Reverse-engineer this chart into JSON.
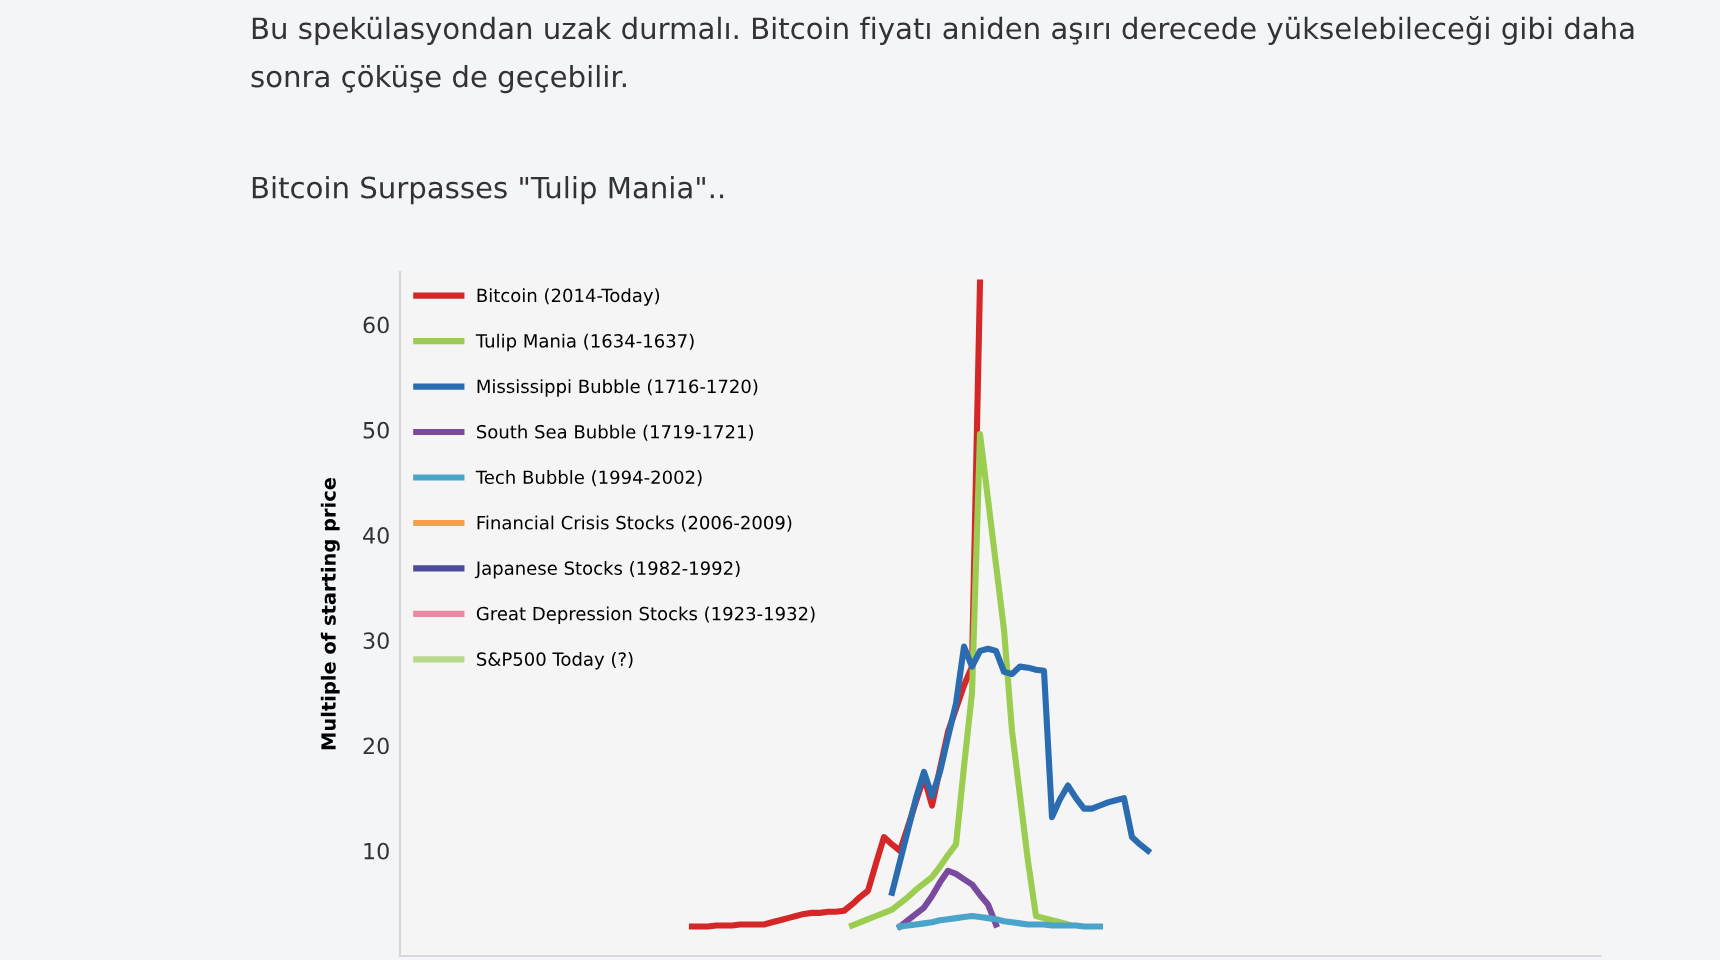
{
  "chart_data": {
    "type": "line",
    "subtitle": "Bu spekülasyondan uzak durmalı. Bitcoin fiyatı aniden aşırı derecede yükselebileceği gibi daha sonra çöküşe de geçebilir.",
    "title": "Bitcoin Surpasses \"Tulip Mania\"..",
    "ylabel": "Multiple of starting price",
    "ylim": [
      0,
      65
    ],
    "yticks": [
      10,
      20,
      30,
      40,
      50,
      60
    ],
    "tick_labels": "y",
    "legend": "top left",
    "line_style": "solid",
    "categories": [
      null,
      null,
      null,
      null,
      null,
      null,
      null,
      null,
      null,
      null,
      null,
      null,
      null,
      null,
      null,
      null,
      null,
      null,
      null,
      null,
      null,
      null,
      null,
      null,
      null,
      null,
      null,
      null,
      null,
      null,
      null,
      null,
      null,
      null,
      null,
      null,
      null,
      null,
      null,
      null,
      null,
      null,
      null,
      null,
      null,
      null,
      null,
      null,
      null,
      null,
      null,
      null,
      null,
      null,
      null,
      null,
      null,
      null,
      null,
      null,
      null,
      null,
      null,
      null,
      null,
      null,
      null,
      null,
      null,
      null,
      null,
      null,
      null,
      null,
      null,
      null,
      null,
      null,
      null,
      null,
      null,
      null,
      null,
      null,
      null,
      null,
      null,
      null,
      null,
      null,
      null,
      null,
      null,
      null,
      null,
      null,
      null,
      null,
      null,
      null,
      null,
      null,
      null,
      null,
      null,
      null,
      null,
      null,
      null,
      null,
      null,
      null,
      null,
      null,
      null,
      null,
      null,
      null,
      null,
      null,
      null,
      null,
      null,
      null,
      null,
      null,
      null,
      null,
      null,
      null,
      null,
      null,
      null,
      null,
      null,
      null,
      null,
      null,
      null,
      null,
      null,
      null,
      null,
      null,
      null,
      null,
      null,
      null,
      null,
      null
    ],
    "series": [
      {
        "name": "Bitcoin (2014-Today)",
        "color": "#d62728",
        "values": [
          null,
          null,
          null,
          null,
          null,
          null,
          null,
          null,
          null,
          null,
          null,
          null,
          null,
          null,
          null,
          null,
          null,
          null,
          null,
          null,
          null,
          null,
          null,
          null,
          null,
          null,
          null,
          null,
          null,
          null,
          null,
          null,
          null,
          null,
          null,
          null,
          2.8,
          2.8,
          2.8,
          2.9,
          2.9,
          2.9,
          3,
          3,
          3,
          3,
          3.2,
          3.4,
          3.6,
          3.8,
          4,
          4.1,
          4.1,
          4.2,
          4.2,
          4.3,
          4.9,
          5.6,
          6.2,
          8.8,
          11.3,
          10.6,
          10,
          12.3,
          14.7,
          17,
          14.3,
          17.8,
          21.3,
          23.5,
          25.7,
          27.5,
          64,
          null,
          null,
          null,
          null,
          null,
          null,
          null,
          null,
          null,
          null,
          null,
          null,
          null,
          null,
          null,
          null,
          null,
          null,
          null,
          null,
          null,
          null,
          null,
          null,
          null,
          null,
          null,
          null,
          null,
          null,
          null,
          null,
          null,
          null,
          null,
          null,
          null,
          null,
          null,
          null,
          null,
          null,
          null,
          null,
          null,
          null,
          null,
          null,
          null,
          null,
          null,
          null,
          null,
          null,
          null,
          null,
          null,
          null,
          null,
          null,
          null,
          null,
          null,
          null,
          null,
          null,
          null,
          null,
          null,
          null,
          null,
          null,
          null,
          null,
          null,
          null,
          null
        ]
      },
      {
        "name": "Tulip Mania (1634-1637)",
        "color": "#9acd50",
        "values": [
          null,
          null,
          null,
          null,
          null,
          null,
          null,
          null,
          null,
          null,
          null,
          null,
          null,
          null,
          null,
          null,
          null,
          null,
          null,
          null,
          null,
          null,
          null,
          null,
          null,
          null,
          null,
          null,
          null,
          null,
          null,
          null,
          null,
          null,
          null,
          null,
          null,
          null,
          null,
          null,
          null,
          null,
          null,
          null,
          null,
          null,
          null,
          null,
          null,
          null,
          null,
          null,
          null,
          null,
          null,
          null,
          2.9,
          3.2,
          3.5,
          3.8,
          4.1,
          4.4,
          5,
          5.6,
          6.3,
          6.9,
          7.5,
          8.5,
          9.6,
          10.6,
          18,
          25,
          49.6,
          43.4,
          37.2,
          31,
          21.4,
          15.2,
          9,
          3.8,
          3.6,
          3.4,
          3.2,
          3,
          null,
          null,
          null,
          null,
          null,
          null,
          null,
          null,
          null,
          null,
          null,
          null,
          null,
          null,
          null,
          null,
          null,
          null,
          null,
          null,
          null,
          null,
          null,
          null,
          null,
          null,
          null,
          null,
          null,
          null,
          null,
          null,
          null,
          null,
          null,
          null,
          null,
          null,
          null,
          null,
          null,
          null,
          null,
          null,
          null,
          null,
          null,
          null,
          null,
          null,
          null,
          null,
          null,
          null,
          null,
          null,
          null,
          null,
          null,
          null,
          null,
          null,
          null,
          null,
          null,
          null
        ]
      },
      {
        "name": "Mississippi Bubble (1716-1720)",
        "color": "#2b6cb0",
        "values": [
          null,
          null,
          null,
          null,
          null,
          null,
          null,
          null,
          null,
          null,
          null,
          null,
          null,
          null,
          null,
          null,
          null,
          null,
          null,
          null,
          null,
          null,
          null,
          null,
          null,
          null,
          null,
          null,
          null,
          null,
          null,
          null,
          null,
          null,
          null,
          null,
          null,
          null,
          null,
          null,
          null,
          null,
          null,
          null,
          null,
          null,
          null,
          null,
          null,
          null,
          null,
          null,
          null,
          null,
          null,
          null,
          null,
          null,
          null,
          null,
          null,
          6,
          9,
          12,
          15,
          17.5,
          15.2,
          17.5,
          20.8,
          24,
          29.4,
          27.5,
          29,
          29.2,
          29,
          27,
          26.8,
          27.5,
          27.4,
          27.2,
          27.1,
          13.2,
          14.9,
          16.2,
          15,
          14,
          14,
          14.3,
          14.6,
          14.8,
          15,
          11.3,
          10.6,
          10,
          null,
          null,
          null,
          null,
          null,
          null,
          null,
          null,
          null,
          null,
          null,
          null,
          null,
          null,
          null,
          null,
          null,
          null,
          null,
          null,
          null,
          null,
          null,
          null,
          null,
          null,
          null,
          null,
          null,
          null,
          null,
          null,
          null,
          null,
          null,
          null,
          null,
          null,
          null,
          null,
          null,
          null,
          null,
          null,
          null,
          null,
          null,
          null,
          null,
          null,
          null,
          null,
          null,
          null,
          null,
          null
        ]
      },
      {
        "name": "South Sea Bubble (1719-1721)",
        "color": "#7a4a9e",
        "values": [
          null,
          null,
          null,
          null,
          null,
          null,
          null,
          null,
          null,
          null,
          null,
          null,
          null,
          null,
          null,
          null,
          null,
          null,
          null,
          null,
          null,
          null,
          null,
          null,
          null,
          null,
          null,
          null,
          null,
          null,
          null,
          null,
          null,
          null,
          null,
          null,
          null,
          null,
          null,
          null,
          null,
          null,
          null,
          null,
          null,
          null,
          null,
          null,
          null,
          null,
          null,
          null,
          null,
          null,
          null,
          null,
          null,
          null,
          null,
          null,
          null,
          null,
          2.8,
          3.4,
          4,
          4.6,
          5.7,
          7,
          8.1,
          7.8,
          7.3,
          6.8,
          5.8,
          4.9,
          3,
          null,
          null,
          null,
          null,
          null,
          null,
          null,
          null,
          null,
          null,
          null,
          null,
          null,
          null,
          null,
          null,
          null,
          null,
          null,
          null,
          null,
          null,
          null,
          null,
          null,
          null,
          null,
          null,
          null,
          null,
          null,
          null,
          null,
          null,
          null,
          null,
          null,
          null,
          null,
          null,
          null,
          null,
          null,
          null,
          null,
          null,
          null,
          null,
          null,
          null,
          null,
          null,
          null,
          null,
          null,
          null,
          null,
          null,
          null,
          null,
          null,
          null,
          null,
          null,
          null,
          null,
          null,
          null,
          null,
          null,
          null,
          null,
          null,
          null,
          null
        ]
      },
      {
        "name": "Tech Bubble (1994-2002)",
        "color": "#4aa3c8",
        "values": [
          null,
          null,
          null,
          null,
          null,
          null,
          null,
          null,
          null,
          null,
          null,
          null,
          null,
          null,
          null,
          null,
          null,
          null,
          null,
          null,
          null,
          null,
          null,
          null,
          null,
          null,
          null,
          null,
          null,
          null,
          null,
          null,
          null,
          null,
          null,
          null,
          null,
          null,
          null,
          null,
          null,
          null,
          null,
          null,
          null,
          null,
          null,
          null,
          null,
          null,
          null,
          null,
          null,
          null,
          null,
          null,
          null,
          null,
          null,
          null,
          null,
          null,
          2.8,
          2.9,
          3,
          3.1,
          3.2,
          3.4,
          3.5,
          3.6,
          3.7,
          3.8,
          3.7,
          3.6,
          3.5,
          3.3,
          3.2,
          3.1,
          3,
          3,
          3,
          2.9,
          2.9,
          2.9,
          2.9,
          2.8,
          2.8,
          2.8,
          null,
          null,
          null,
          null,
          null,
          null,
          null,
          null,
          null,
          null,
          null,
          null,
          null,
          null,
          null,
          null,
          null,
          null,
          null,
          null,
          null,
          null,
          null,
          null,
          null,
          null,
          null,
          null,
          null,
          null,
          null,
          null,
          null,
          null,
          null,
          null,
          null,
          null,
          null,
          null,
          null,
          null,
          null,
          null,
          null,
          null,
          null,
          null,
          null,
          null,
          null,
          null,
          null,
          null,
          null,
          null,
          null,
          null,
          null,
          null,
          null,
          null
        ]
      },
      {
        "name": "Financial Crisis Stocks (2006-2009)",
        "color": "#f0a050",
        "values": [
          null,
          null,
          null,
          null,
          null,
          null,
          null,
          null,
          null,
          null,
          null,
          null,
          null,
          null,
          null,
          null,
          null,
          null,
          null,
          null,
          null,
          null,
          null,
          null,
          null,
          null,
          null,
          null,
          null,
          null,
          null,
          null,
          null,
          null,
          null,
          null,
          null,
          null,
          null,
          null,
          null,
          null,
          null,
          null,
          null,
          null,
          null,
          null,
          null,
          null,
          null,
          null,
          null,
          null,
          null,
          null,
          null,
          null,
          null,
          null,
          null,
          null,
          null,
          null,
          null,
          null,
          null,
          null,
          null,
          null,
          null,
          null,
          null,
          null,
          null,
          null,
          null,
          null,
          null,
          null,
          null,
          null,
          null,
          null,
          null,
          null,
          null,
          null,
          null,
          null,
          null,
          null,
          null,
          null,
          null,
          null,
          null,
          null,
          null,
          null,
          null,
          null,
          null,
          null,
          null,
          null,
          null,
          null,
          null,
          null,
          null,
          null,
          null,
          null,
          null,
          null,
          null,
          null,
          null,
          null,
          null,
          null,
          null,
          null,
          null,
          null,
          null,
          null,
          null,
          null,
          null,
          null,
          null,
          null,
          null,
          null,
          null,
          null,
          null,
          null,
          null,
          null,
          null,
          null,
          null,
          null,
          null,
          null,
          null,
          null
        ]
      },
      {
        "name": "Japanese Stocks (1982-1992)",
        "color": "#4a4a9e",
        "values": [
          null,
          null,
          null,
          null,
          null,
          null,
          null,
          null,
          null,
          null,
          null,
          null,
          null,
          null,
          null,
          null,
          null,
          null,
          null,
          null,
          null,
          null,
          null,
          null,
          null,
          null,
          null,
          null,
          null,
          null,
          null,
          null,
          null,
          null,
          null,
          null,
          null,
          null,
          null,
          null,
          null,
          null,
          null,
          null,
          null,
          null,
          null,
          null,
          null,
          null,
          null,
          null,
          null,
          null,
          null,
          null,
          null,
          null,
          null,
          null,
          null,
          null,
          null,
          null,
          null,
          null,
          null,
          null,
          null,
          null,
          null,
          null,
          null,
          null,
          null,
          null,
          null,
          null,
          null,
          null,
          null,
          null,
          null,
          null,
          null,
          null,
          null,
          null,
          null,
          null,
          null,
          null,
          null,
          null,
          null,
          null,
          null,
          null,
          null,
          null,
          null,
          null,
          null,
          null,
          null,
          null,
          null,
          null,
          null,
          null,
          null,
          null,
          null,
          null,
          null,
          null,
          null,
          null,
          null,
          null,
          null,
          null,
          null,
          null,
          null,
          null,
          null,
          null,
          null,
          null,
          null,
          null,
          null,
          null,
          null,
          null,
          null,
          null,
          null,
          null,
          null,
          null,
          null,
          null,
          null,
          null,
          null,
          null,
          null,
          null
        ]
      },
      {
        "name": "Great Depression Stocks (1923-1932)",
        "color": "#e88aa0",
        "values": [
          null,
          null,
          null,
          null,
          null,
          null,
          null,
          null,
          null,
          null,
          null,
          null,
          null,
          null,
          null,
          null,
          null,
          null,
          null,
          null,
          null,
          null,
          null,
          null,
          null,
          null,
          null,
          null,
          null,
          null,
          null,
          null,
          null,
          null,
          null,
          null,
          null,
          null,
          null,
          null,
          null,
          null,
          null,
          null,
          null,
          null,
          null,
          null,
          null,
          null,
          null,
          null,
          null,
          null,
          null,
          null,
          null,
          null,
          null,
          null,
          null,
          null,
          null,
          null,
          null,
          null,
          null,
          null,
          null,
          null,
          null,
          null,
          null,
          null,
          null,
          null,
          null,
          null,
          null,
          null,
          null,
          null,
          null,
          null,
          null,
          null,
          null,
          null,
          null,
          null,
          null,
          null,
          null,
          null,
          null,
          null,
          null,
          null,
          null,
          null,
          null,
          null,
          null,
          null,
          null,
          null,
          null,
          null,
          null,
          null,
          null,
          null,
          null,
          null,
          null,
          null,
          null,
          null,
          null,
          null,
          null,
          null,
          null,
          null,
          null,
          null,
          null,
          null,
          null,
          null,
          null,
          null,
          null,
          null,
          null,
          null,
          null,
          null,
          null,
          null,
          null,
          null,
          null,
          null,
          null,
          null,
          null,
          null,
          null,
          null
        ]
      },
      {
        "name": "S&P500 Today (?)",
        "color": "#b8d890",
        "values": [
          null,
          null,
          null,
          null,
          null,
          null,
          null,
          null,
          null,
          null,
          null,
          null,
          null,
          null,
          null,
          null,
          null,
          null,
          null,
          null,
          null,
          null,
          null,
          null,
          null,
          null,
          null,
          null,
          null,
          null,
          null,
          null,
          null,
          null,
          null,
          null,
          null,
          null,
          null,
          null,
          null,
          null,
          null,
          null,
          null,
          null,
          null,
          null,
          null,
          null,
          null,
          null,
          null,
          null,
          null,
          null,
          null,
          null,
          null,
          null,
          null,
          null,
          null,
          null,
          null,
          null,
          null,
          null,
          null,
          null,
          null,
          null,
          null,
          null,
          null,
          null,
          null,
          null,
          null,
          null,
          null,
          null,
          null,
          null,
          null,
          null,
          null,
          null,
          null,
          null,
          null,
          null,
          null,
          null,
          null,
          null,
          null,
          null,
          null,
          null,
          null,
          null,
          null,
          null,
          null,
          null,
          null,
          null,
          null,
          null,
          null,
          null,
          null,
          null,
          null,
          null,
          null,
          null,
          null,
          null,
          null,
          null,
          null,
          null,
          null,
          null,
          null,
          null,
          null,
          null,
          null,
          null,
          null,
          null,
          null,
          null,
          null,
          null,
          null,
          null,
          null,
          null,
          null,
          null,
          null,
          null,
          null,
          null,
          null,
          null
        ]
      }
    ]
  }
}
